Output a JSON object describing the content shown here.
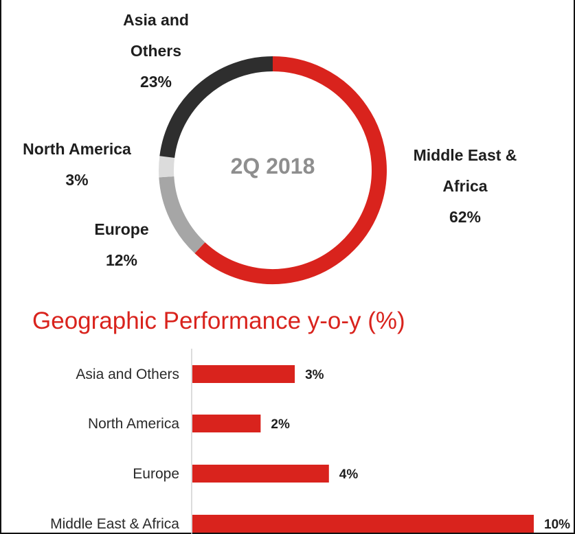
{
  "chart_data": [
    {
      "type": "pie",
      "variant": "donut",
      "title": "",
      "center_label": "2Q 2018",
      "slices": [
        {
          "label_lines": [
            "Middle East &",
            "Africa"
          ],
          "value": 62,
          "display": "62%",
          "color": "#d9231d"
        },
        {
          "label_lines": [
            "Europe"
          ],
          "value": 12,
          "display": "12%",
          "color": "#a6a6a6"
        },
        {
          "label_lines": [
            "North America"
          ],
          "value": 3,
          "display": "3%",
          "color": "#dcdcdc"
        },
        {
          "label_lines": [
            "Asia and",
            "Others"
          ],
          "value": 23,
          "display": "23%",
          "color": "#2e2e2e"
        }
      ]
    },
    {
      "type": "bar",
      "orientation": "horizontal",
      "title": "Geographic Performance y-o-y (%)",
      "categories": [
        "Asia and Others",
        "North America",
        "Europe",
        "Middle East & Africa"
      ],
      "values": [
        3,
        2,
        4,
        10
      ],
      "display": [
        "3%",
        "2%",
        "4%",
        "10%"
      ],
      "xlim": [
        0,
        10
      ],
      "color": "#d9231d"
    }
  ]
}
